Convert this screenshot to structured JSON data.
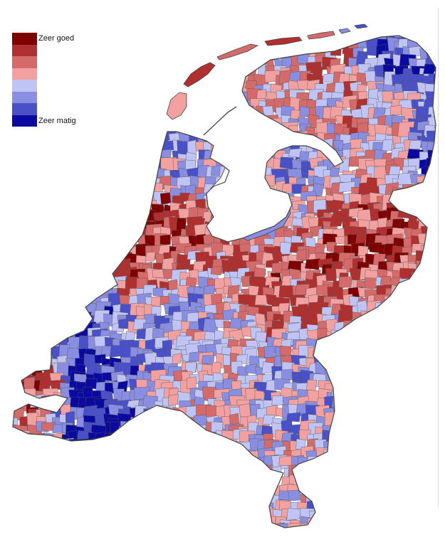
{
  "legend": {
    "classes": [
      {
        "color": "#7f0000",
        "label": "Zeer goed"
      },
      {
        "color": "#b03030",
        "label": ""
      },
      {
        "color": "#d46a6a",
        "label": ""
      },
      {
        "color": "#f2a0a0",
        "label": ""
      },
      {
        "color": "#c0c4f4",
        "label": ""
      },
      {
        "color": "#8a8ee0",
        "label": ""
      },
      {
        "color": "#4a50c8",
        "label": ""
      },
      {
        "color": "#0a0aa0",
        "label": "Zeer matig"
      }
    ]
  },
  "map": {
    "background": "#ffffff",
    "border_color": "#555555",
    "water_color": "#ffffff"
  }
}
